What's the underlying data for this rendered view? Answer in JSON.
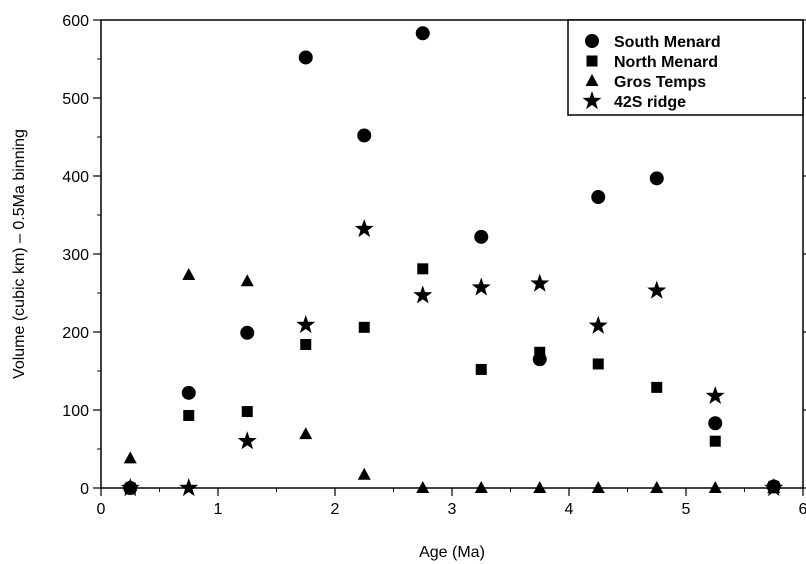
{
  "chart_data": {
    "type": "scatter",
    "xlabel": "Age (Ma)",
    "ylabel": "Volume (cubic km) – 0.5Ma binning",
    "xlim": [
      0,
      6
    ],
    "ylim": [
      0,
      600
    ],
    "xticks": [
      0,
      1,
      2,
      3,
      4,
      5,
      6
    ],
    "yticks": [
      0,
      100,
      200,
      300,
      400,
      500,
      600
    ],
    "grid": false,
    "legend_position": "top-right",
    "series": [
      {
        "name": "South Menard",
        "marker": "circle",
        "x": [
          0.25,
          0.75,
          1.25,
          1.75,
          2.25,
          2.75,
          3.25,
          3.75,
          4.25,
          4.75,
          5.25,
          5.75
        ],
        "y": [
          0,
          122,
          199,
          552,
          452,
          583,
          322,
          165,
          373,
          397,
          83,
          2
        ]
      },
      {
        "name": "North Menard",
        "marker": "square",
        "x": [
          0.25,
          0.75,
          1.25,
          1.75,
          2.25,
          2.75,
          3.25,
          3.75,
          4.25,
          4.75,
          5.25,
          5.75
        ],
        "y": [
          0,
          93,
          98,
          184,
          206,
          281,
          152,
          174,
          159,
          129,
          60,
          2
        ]
      },
      {
        "name": "Gros Temps",
        "marker": "triangle",
        "x": [
          0.25,
          0.75,
          1.25,
          1.75,
          2.25,
          2.75,
          3.25,
          3.75,
          4.25,
          4.75,
          5.25,
          5.75
        ],
        "y": [
          38,
          273,
          265,
          69,
          17,
          0,
          0,
          0,
          0,
          0,
          0,
          0
        ]
      },
      {
        "name": "42S ridge",
        "marker": "star",
        "x": [
          0.25,
          0.75,
          1.25,
          1.75,
          2.25,
          2.75,
          3.25,
          3.75,
          4.25,
          4.75,
          5.25,
          5.75
        ],
        "y": [
          0,
          0,
          60,
          209,
          332,
          247,
          257,
          262,
          208,
          253,
          118,
          0
        ]
      }
    ]
  }
}
